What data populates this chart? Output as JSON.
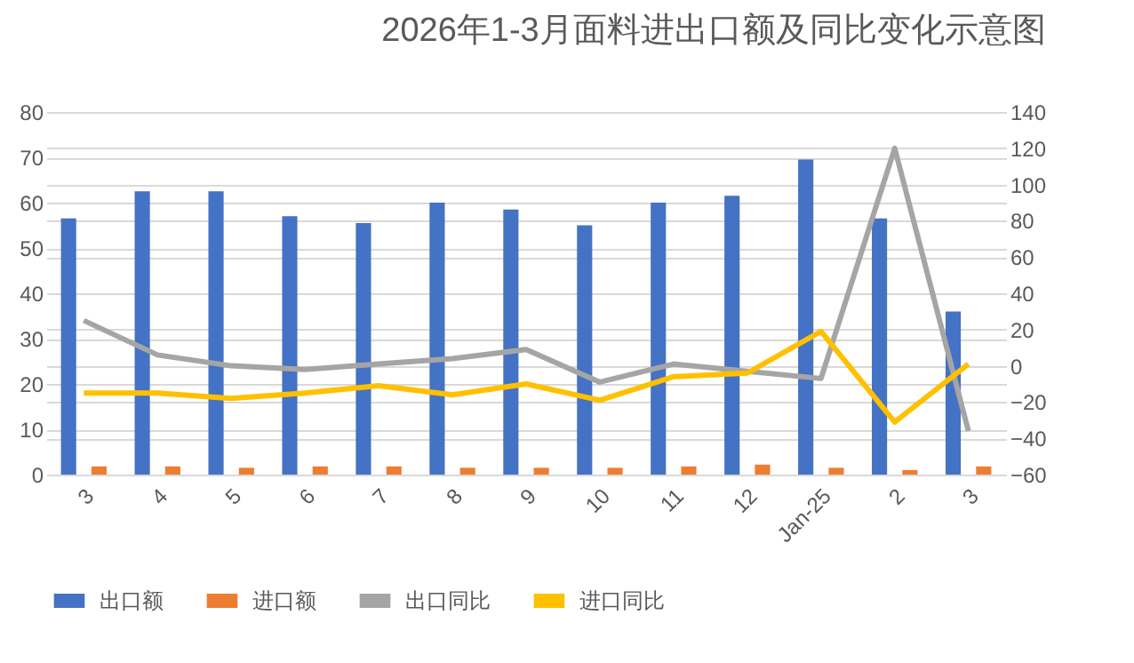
{
  "chart_data": {
    "type": "bar",
    "title": "2026年1-3月面料进出口额及同比变化示意图",
    "categories": [
      "3",
      "4",
      "5",
      "6",
      "7",
      "8",
      "9",
      "10",
      "11",
      "12",
      "Jan-25",
      "2",
      "3"
    ],
    "series": [
      {
        "name": "出口额",
        "color": "#4472c4",
        "values": [
          56.5,
          62.5,
          62.5,
          57,
          55.5,
          60,
          58.5,
          55,
          60,
          61.5,
          69.5,
          56.5,
          36
        ]
      },
      {
        "name": "进口额",
        "color": "#ed7d31",
        "values": [
          1.8,
          1.8,
          1.5,
          1.8,
          1.8,
          1.5,
          1.5,
          1.5,
          1.8,
          2.2,
          1.5,
          1.0,
          1.8
        ]
      },
      {
        "name": "出口同比",
        "type": "line",
        "axis": "y2",
        "color": "#a5a5a5",
        "values": [
          25,
          6,
          0,
          -2,
          1,
          4,
          9,
          -9,
          1,
          -3,
          -7,
          120,
          -36
        ]
      },
      {
        "name": "进口同比",
        "type": "line",
        "axis": "y2",
        "color": "#ffc000",
        "values": [
          -15,
          -15,
          -18,
          -15,
          -11,
          -16,
          -10,
          -19,
          -6,
          -4,
          19,
          -31,
          1
        ]
      }
    ],
    "ylim": [
      0,
      80
    ],
    "yticks": [
      0,
      10,
      20,
      30,
      40,
      50,
      60,
      70,
      80
    ],
    "y2lim": [
      -60,
      140
    ],
    "y2ticks": [
      -60,
      -40,
      -20,
      0,
      20,
      40,
      60,
      80,
      100,
      120,
      140
    ],
    "grid": "y",
    "legend": "bottom"
  }
}
